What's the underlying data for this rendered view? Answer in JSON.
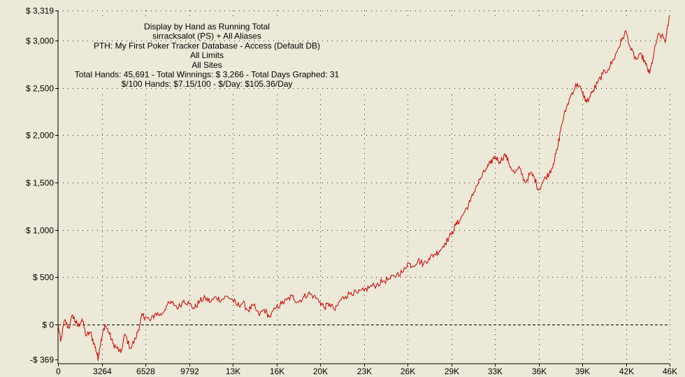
{
  "chart_data": {
    "type": "line",
    "info_lines": [
      "Display by Hand as Running Total",
      "sirracksalot (PS) + All Aliases",
      "PTH: My First Poker Tracker Database - Access (Default DB)",
      "All Limits",
      "All Sites",
      "Total Hands: 45,691 - Total Winnings: $ 3,266 - Total Days Graphed: 31",
      "$/100 Hands: $7.15/100 - $/Day: $105.36/Day"
    ],
    "xlim": [
      0,
      45691
    ],
    "ylim": [
      -369,
      3319
    ],
    "x_ticks": [
      {
        "value": 0,
        "label": "0"
      },
      {
        "value": 3264,
        "label": "3264"
      },
      {
        "value": 6528,
        "label": "6528"
      },
      {
        "value": 9792,
        "label": "9792"
      },
      {
        "value": 13056,
        "label": "13K"
      },
      {
        "value": 16320,
        "label": "16K"
      },
      {
        "value": 19584,
        "label": "20K"
      },
      {
        "value": 22848,
        "label": "23K"
      },
      {
        "value": 26112,
        "label": "26K"
      },
      {
        "value": 29376,
        "label": "29K"
      },
      {
        "value": 32640,
        "label": "33K"
      },
      {
        "value": 35904,
        "label": "36K"
      },
      {
        "value": 39168,
        "label": "39K"
      },
      {
        "value": 42432,
        "label": "42K"
      },
      {
        "value": 45691,
        "label": "46K"
      }
    ],
    "y_ticks": [
      {
        "value": -369,
        "label": "-$ 369"
      },
      {
        "value": 0,
        "label": "$ 0"
      },
      {
        "value": 500,
        "label": "$ 500"
      },
      {
        "value": 1000,
        "label": "$ 1,000"
      },
      {
        "value": 1500,
        "label": "$ 1,500"
      },
      {
        "value": 2000,
        "label": "$ 2,000"
      },
      {
        "value": 2500,
        "label": "$ 2,500"
      },
      {
        "value": 3000,
        "label": "$ 3,000"
      },
      {
        "value": 3319,
        "label": "$ 3,319"
      }
    ],
    "grid": true,
    "line_color": "#cc0000",
    "series": [
      {
        "x": [
          0,
          200,
          500,
          800,
          1100,
          1300,
          1500,
          1800,
          2100,
          2400,
          2700,
          2900,
          3000,
          3100,
          3264,
          3500,
          3800,
          4100,
          4400,
          4700,
          5000,
          5400,
          5800,
          6100,
          6300,
          6528,
          6900,
          7300,
          7700,
          8100,
          8500,
          9000,
          9400,
          9792,
          10200,
          10600,
          11000,
          11400,
          11800,
          12200,
          12600,
          13056,
          13400,
          13800,
          14200,
          14600,
          15000,
          15400,
          15800,
          16320,
          16700,
          17100,
          17500,
          17900,
          18300,
          18700,
          19100,
          19584,
          19900,
          20300,
          20700,
          21100,
          21500,
          21900,
          22400,
          22848,
          23300,
          23800,
          24300,
          24800,
          25300,
          25800,
          26112,
          26500,
          26900,
          27300,
          27700,
          28100,
          28500,
          28900,
          29376,
          29700,
          30000,
          30400,
          30800,
          31200,
          31600,
          32000,
          32300,
          32640,
          33000,
          33400,
          33700,
          34100,
          34500,
          34900,
          35300,
          35600,
          35904,
          36300,
          36700,
          37000,
          37300,
          37600,
          38000,
          38400,
          38800,
          39168,
          39500,
          39900,
          40300,
          40700,
          41100,
          41500,
          41800,
          42100,
          42432,
          42800,
          43200,
          43600,
          43900,
          44200,
          44500,
          44800,
          45100,
          45400,
          45691
        ],
        "y": [
          0,
          -180,
          50,
          -40,
          100,
          30,
          -20,
          60,
          -120,
          -80,
          -200,
          -300,
          -360,
          -250,
          -150,
          0,
          -80,
          -200,
          -250,
          -300,
          -100,
          -250,
          -150,
          0,
          100,
          80,
          40,
          120,
          100,
          200,
          230,
          180,
          260,
          220,
          170,
          250,
          280,
          240,
          290,
          260,
          300,
          260,
          200,
          230,
          150,
          200,
          100,
          160,
          80,
          180,
          220,
          260,
          300,
          240,
          280,
          330,
          300,
          240,
          180,
          220,
          150,
          260,
          300,
          340,
          330,
          360,
          400,
          420,
          460,
          480,
          530,
          560,
          650,
          620,
          680,
          640,
          700,
          740,
          780,
          860,
          950,
          1050,
          1100,
          1200,
          1300,
          1450,
          1550,
          1650,
          1700,
          1780,
          1720,
          1800,
          1700,
          1600,
          1650,
          1500,
          1600,
          1550,
          1420,
          1530,
          1600,
          1700,
          1850,
          2100,
          2300,
          2450,
          2550,
          2450,
          2350,
          2450,
          2550,
          2650,
          2700,
          2800,
          2900,
          3000,
          3100,
          2900,
          2800,
          2850,
          2750,
          2650,
          2850,
          3050,
          3050,
          3000,
          3266
        ]
      }
    ]
  }
}
